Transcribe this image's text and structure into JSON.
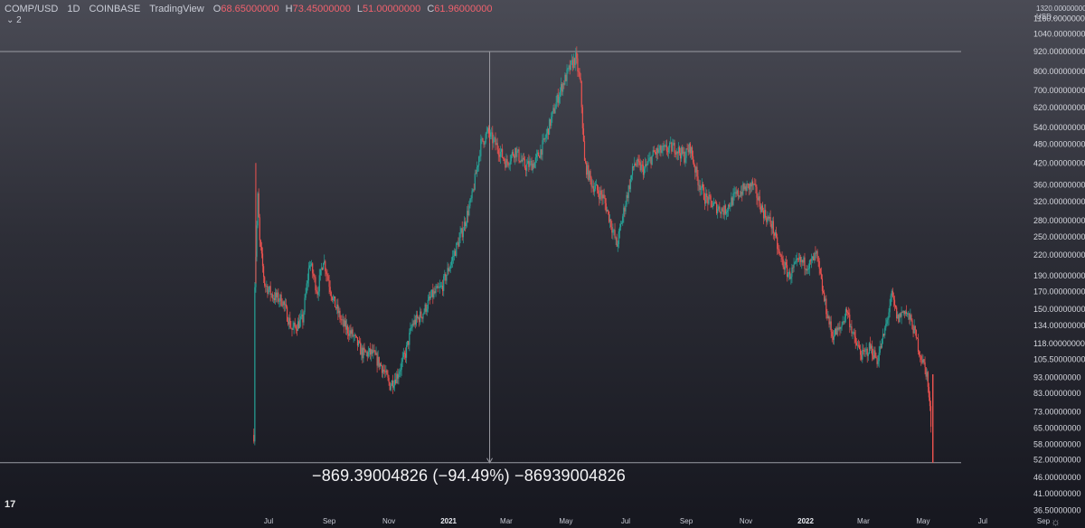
{
  "header": {
    "symbol": "COMP/USD",
    "interval": "1D",
    "exchange": "COINBASE",
    "source": "TradingView",
    "open_label": "O",
    "open": "68.65000000",
    "high_label": "H",
    "high": "73.45000000",
    "low_label": "L",
    "low": "51.00000000",
    "close_label": "C",
    "close": "61.96000000",
    "indicator_toggle": "⌄ 2"
  },
  "currency": {
    "line1": "1320.00000000",
    "line2": "USD⌄"
  },
  "measurement_text": "−869.39004826 (−94.49%) −86939004826",
  "logo_text": "17",
  "colors": {
    "up": "#26a69a",
    "down": "#ef5350",
    "level": "#9a9ba3",
    "background_top": "#4a4b55",
    "background_bottom": "#16171f"
  },
  "chart_data": {
    "type": "candlestick",
    "title": "COMP/USD",
    "y_scale": "log",
    "ylim": [
      35,
      1330
    ],
    "y_ticks": [
      "1160.00000000",
      "1040.00000000",
      "920.00000000",
      "800.00000000",
      "700.00000000",
      "620.00000000",
      "540.00000000",
      "480.00000000",
      "420.00000000",
      "360.00000000",
      "320.00000000",
      "280.00000000",
      "250.00000000",
      "220.00000000",
      "190.00000000",
      "170.00000000",
      "150.00000000",
      "134.00000000",
      "118.00000000",
      "105.50000000",
      "93.00000000",
      "83.00000000",
      "73.00000000",
      "65.00000000",
      "58.00000000",
      "52.00000000",
      "46.00000000",
      "41.00000000",
      "36.50000000"
    ],
    "x_ticks": [
      {
        "label": "Jul",
        "date": "2020-07-01"
      },
      {
        "label": "Sep",
        "date": "2020-09-01"
      },
      {
        "label": "Nov",
        "date": "2020-11-01"
      },
      {
        "label": "2021",
        "date": "2021-01-01",
        "bold": true
      },
      {
        "label": "Mar",
        "date": "2021-03-01"
      },
      {
        "label": "May",
        "date": "2021-05-01"
      },
      {
        "label": "Jul",
        "date": "2021-07-01"
      },
      {
        "label": "Sep",
        "date": "2021-09-01"
      },
      {
        "label": "Nov",
        "date": "2021-11-01"
      },
      {
        "label": "2022",
        "date": "2022-01-01",
        "bold": true
      },
      {
        "label": "Mar",
        "date": "2022-03-01"
      },
      {
        "label": "May",
        "date": "2022-05-01"
      },
      {
        "label": "Jul",
        "date": "2022-07-01"
      },
      {
        "label": "Sep",
        "date": "2022-09-01"
      }
    ],
    "x_range": [
      "2020-05-14",
      "2022-10-07"
    ],
    "close_path": [
      {
        "date": "2020-06-16",
        "close": 62
      },
      {
        "date": "2020-06-17",
        "close": 180
      },
      {
        "date": "2020-06-20",
        "close": 330
      },
      {
        "date": "2020-06-22",
        "close": 240
      },
      {
        "date": "2020-06-27",
        "close": 180
      },
      {
        "date": "2020-07-05",
        "close": 165
      },
      {
        "date": "2020-07-15",
        "close": 160
      },
      {
        "date": "2020-07-25",
        "close": 130
      },
      {
        "date": "2020-08-05",
        "close": 140
      },
      {
        "date": "2020-08-12",
        "close": 210
      },
      {
        "date": "2020-08-20",
        "close": 170
      },
      {
        "date": "2020-08-26",
        "close": 215
      },
      {
        "date": "2020-09-05",
        "close": 160
      },
      {
        "date": "2020-09-15",
        "close": 135
      },
      {
        "date": "2020-09-25",
        "close": 125
      },
      {
        "date": "2020-10-05",
        "close": 110
      },
      {
        "date": "2020-10-15",
        "close": 110
      },
      {
        "date": "2020-10-25",
        "close": 100
      },
      {
        "date": "2020-11-02",
        "close": 88
      },
      {
        "date": "2020-11-10",
        "close": 95
      },
      {
        "date": "2020-11-18",
        "close": 110
      },
      {
        "date": "2020-11-25",
        "close": 135
      },
      {
        "date": "2020-12-05",
        "close": 145
      },
      {
        "date": "2020-12-15",
        "close": 165
      },
      {
        "date": "2020-12-25",
        "close": 175
      },
      {
        "date": "2021-01-05",
        "close": 215
      },
      {
        "date": "2021-01-15",
        "close": 260
      },
      {
        "date": "2021-01-25",
        "close": 330
      },
      {
        "date": "2021-02-03",
        "close": 480
      },
      {
        "date": "2021-02-10",
        "close": 520
      },
      {
        "date": "2021-02-20",
        "close": 470
      },
      {
        "date": "2021-03-01",
        "close": 420
      },
      {
        "date": "2021-03-10",
        "close": 460
      },
      {
        "date": "2021-03-20",
        "close": 410
      },
      {
        "date": "2021-03-30",
        "close": 420
      },
      {
        "date": "2021-04-08",
        "close": 480
      },
      {
        "date": "2021-04-15",
        "close": 560
      },
      {
        "date": "2021-04-25",
        "close": 700
      },
      {
        "date": "2021-05-05",
        "close": 820
      },
      {
        "date": "2021-05-11",
        "close": 880
      },
      {
        "date": "2021-05-16",
        "close": 720
      },
      {
        "date": "2021-05-20",
        "close": 420
      },
      {
        "date": "2021-05-28",
        "close": 360
      },
      {
        "date": "2021-06-08",
        "close": 330
      },
      {
        "date": "2021-06-16",
        "close": 275
      },
      {
        "date": "2021-06-22",
        "close": 235
      },
      {
        "date": "2021-07-01",
        "close": 320
      },
      {
        "date": "2021-07-10",
        "close": 420
      },
      {
        "date": "2021-07-20",
        "close": 400
      },
      {
        "date": "2021-07-30",
        "close": 450
      },
      {
        "date": "2021-08-10",
        "close": 460
      },
      {
        "date": "2021-08-20",
        "close": 470
      },
      {
        "date": "2021-08-30",
        "close": 440
      },
      {
        "date": "2021-09-05",
        "close": 470
      },
      {
        "date": "2021-09-12",
        "close": 380
      },
      {
        "date": "2021-09-20",
        "close": 330
      },
      {
        "date": "2021-09-30",
        "close": 310
      },
      {
        "date": "2021-10-10",
        "close": 300
      },
      {
        "date": "2021-10-20",
        "close": 330
      },
      {
        "date": "2021-10-30",
        "close": 350
      },
      {
        "date": "2021-11-08",
        "close": 360
      },
      {
        "date": "2021-11-18",
        "close": 300
      },
      {
        "date": "2021-11-28",
        "close": 270
      },
      {
        "date": "2021-12-05",
        "close": 220
      },
      {
        "date": "2021-12-15",
        "close": 190
      },
      {
        "date": "2021-12-25",
        "close": 210
      },
      {
        "date": "2022-01-05",
        "close": 205
      },
      {
        "date": "2022-01-12",
        "close": 220
      },
      {
        "date": "2022-01-20",
        "close": 160
      },
      {
        "date": "2022-01-28",
        "close": 125
      },
      {
        "date": "2022-02-05",
        "close": 130
      },
      {
        "date": "2022-02-12",
        "close": 150
      },
      {
        "date": "2022-02-20",
        "close": 120
      },
      {
        "date": "2022-02-28",
        "close": 108
      },
      {
        "date": "2022-03-08",
        "close": 115
      },
      {
        "date": "2022-03-15",
        "close": 105
      },
      {
        "date": "2022-03-22",
        "close": 125
      },
      {
        "date": "2022-03-30",
        "close": 165
      },
      {
        "date": "2022-04-05",
        "close": 140
      },
      {
        "date": "2022-04-12",
        "close": 150
      },
      {
        "date": "2022-04-20",
        "close": 135
      },
      {
        "date": "2022-04-28",
        "close": 110
      },
      {
        "date": "2022-05-05",
        "close": 95
      },
      {
        "date": "2022-05-10",
        "close": 62
      }
    ],
    "measurement": {
      "high_price": 920,
      "low_price": 51,
      "start_date": "2021-02-12",
      "end_date": "2022-05-12",
      "change": "−869.39004826",
      "change_pct": "−94.49%"
    }
  }
}
